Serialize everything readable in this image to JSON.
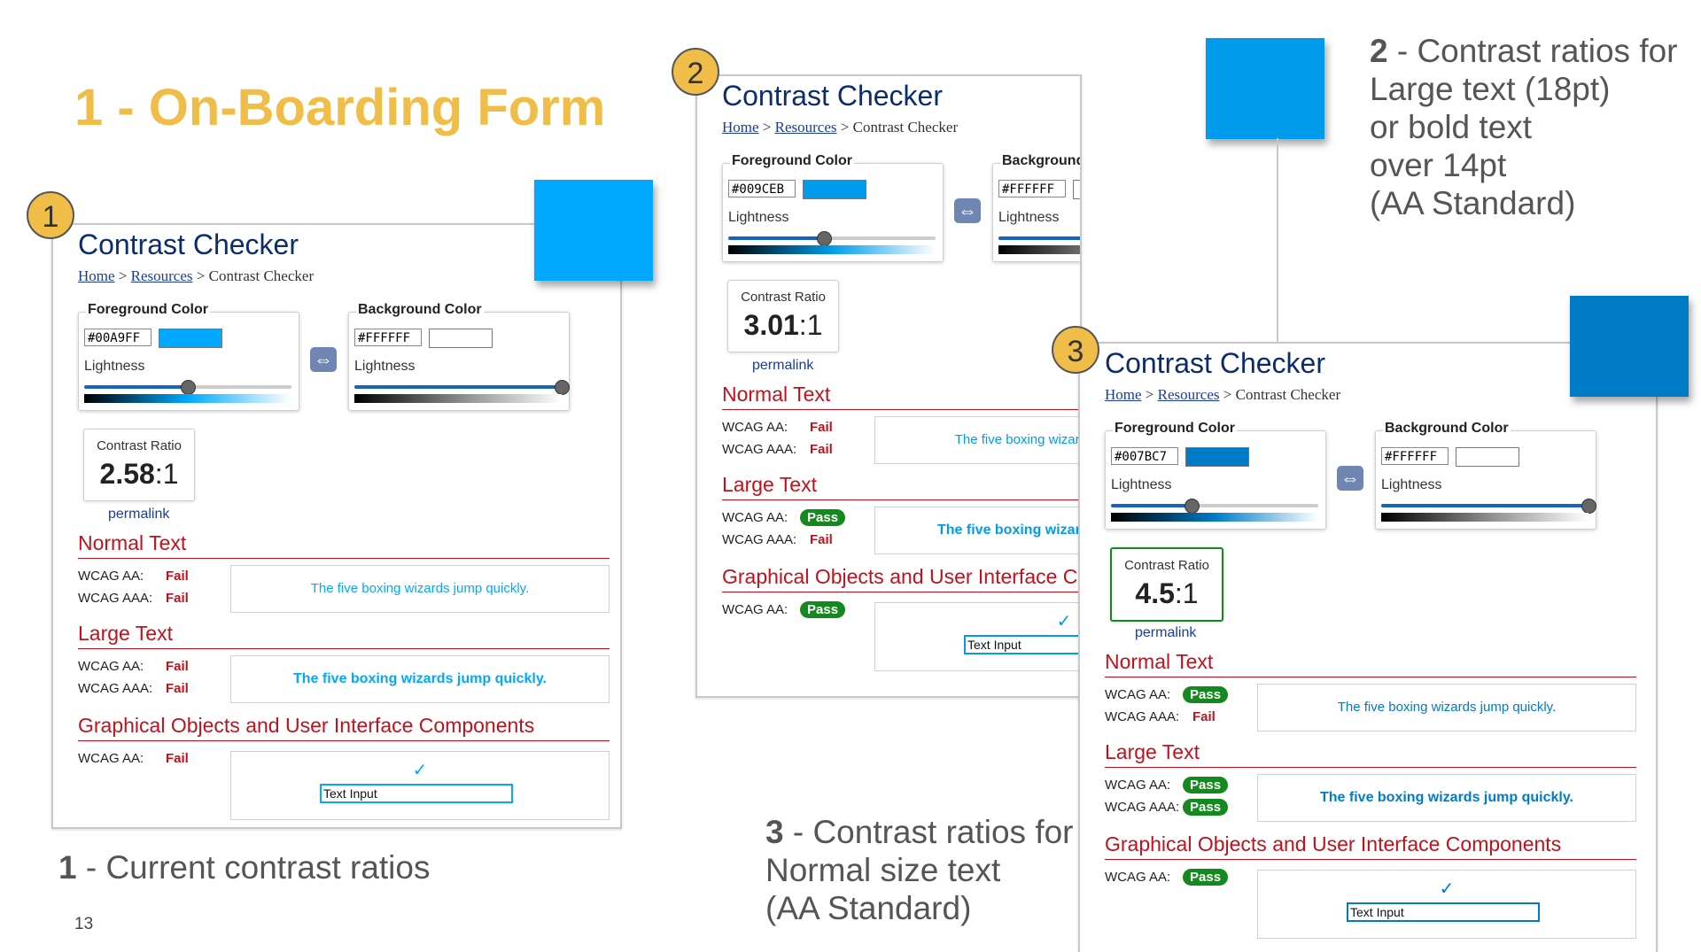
{
  "slide": {
    "title": "1 - On-Boarding Form",
    "page_number": "13",
    "captions": {
      "c1_num": "1",
      "c1_text": " - Current contrast ratios",
      "c2_num": "2",
      "c2_line1": " - Contrast ratios for",
      "c2_line2": "Large text (18pt)",
      "c2_line3": "or bold text",
      "c2_line4": "over 14pt",
      "c2_line5": "(AA Standard)",
      "c3_num": "3",
      "c3_line1": " - Contrast ratios for",
      "c3_line2": "Normal size text",
      "c3_line3": "(AA Standard)"
    }
  },
  "checker_common": {
    "title": "Contrast Checker",
    "crumb_home": "Home",
    "crumb_sep": " > ",
    "crumb_resources": "Resources",
    "crumb_current": "Contrast Checker",
    "fg_label": "Foreground Color",
    "bg_label": "Background Color",
    "lightness": "Lightness",
    "ratio_label": "Contrast Ratio",
    "permalink": "permalink",
    "normal_text": "Normal Text",
    "large_text": "Large Text",
    "graphical": "Graphical Objects and User Interface Components",
    "wcag_aa": "WCAG AA:",
    "wcag_aaa": "WCAG AAA:",
    "sample": "The five boxing wizards jump quickly.",
    "check_mark": "✓",
    "text_input": "Text Input",
    "swap_icon": "⇔"
  },
  "checkers": [
    {
      "badge": "1",
      "fg_hex": "#00A9FF",
      "fg_color": "#00A9FF",
      "bg_hex": "#FFFFFF",
      "bg_color": "#FFFFFF",
      "fg_lightness": 0.5,
      "bg_lightness": 1.0,
      "ratio_main": "2.58",
      "ratio_suffix": ":1",
      "normal_aa": "Fail",
      "normal_aaa": "Fail",
      "large_aa": "Fail",
      "large_aaa": "Fail",
      "ui_aa": "Fail"
    },
    {
      "badge": "2",
      "fg_hex": "#009CEB",
      "fg_color": "#009CEB",
      "bg_hex": "#FFFFFF",
      "bg_color": "#FFFFFF",
      "fg_lightness": 0.46,
      "bg_lightness": 1.0,
      "ratio_main": "3.01",
      "ratio_suffix": ":1",
      "normal_aa": "Fail",
      "normal_aaa": "Fail",
      "large_aa": "Pass",
      "large_aaa": "Fail",
      "ui_aa": "Pass"
    },
    {
      "badge": "3",
      "fg_hex": "#007BC7",
      "fg_color": "#007BC7",
      "bg_hex": "#FFFFFF",
      "bg_color": "#FFFFFF",
      "fg_lightness": 0.39,
      "bg_lightness": 1.0,
      "ratio_main": "4.5",
      "ratio_suffix": ":1",
      "normal_aa": "Pass",
      "normal_aaa": "Fail",
      "large_aa": "Pass",
      "large_aaa": "Pass",
      "ui_aa": "Pass"
    }
  ],
  "colors": {
    "title_gold": "#f0bd48",
    "heading_red": "#c0121c",
    "pass_green": "#138a1d"
  }
}
